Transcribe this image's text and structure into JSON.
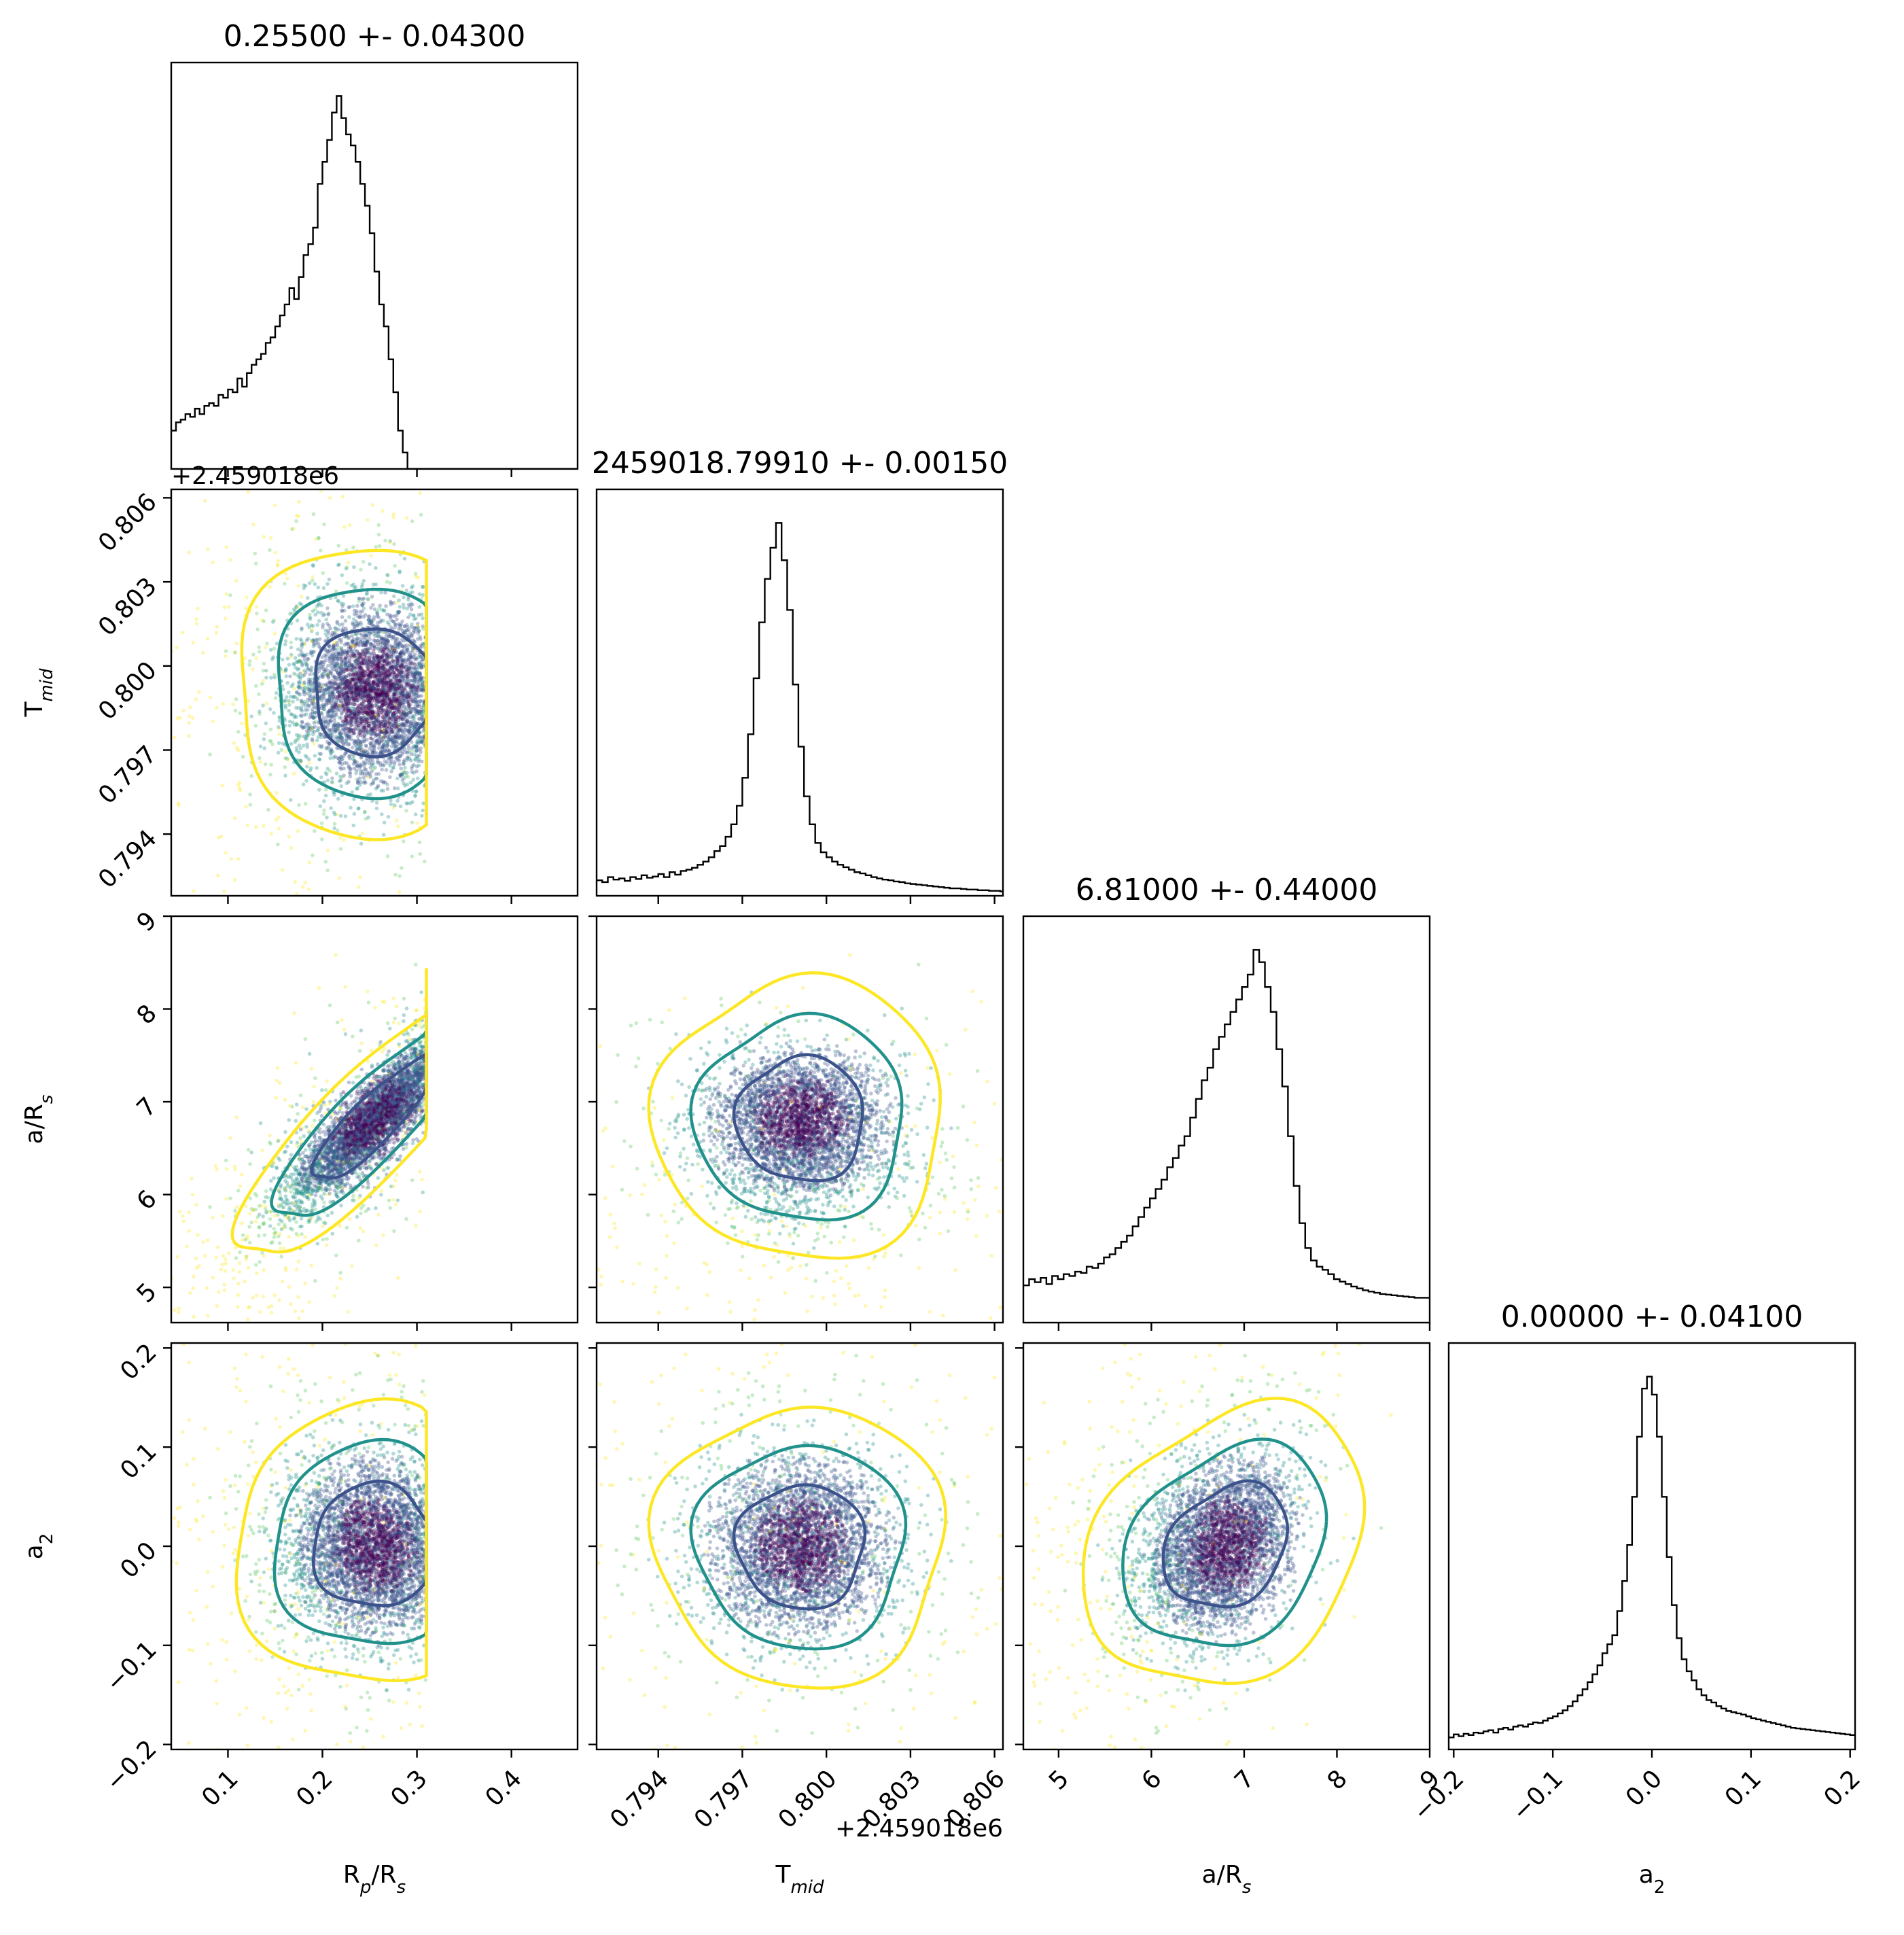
{
  "chart_data": {
    "type": "corner",
    "parameters": [
      {
        "key": "rprs",
        "label_main": "R",
        "label_sub": "p",
        "label_tail": "/R",
        "label_tail_sub": "s",
        "range": [
          0.04,
          0.47
        ],
        "ticks": [
          0.1,
          0.2,
          0.3,
          0.4
        ],
        "tick_labels": [
          "0.1",
          "0.2",
          "0.3",
          "0.4"
        ],
        "offset": ""
      },
      {
        "key": "tmid",
        "label_main": "T",
        "label_sub": "mid",
        "label_tail": "",
        "label_tail_sub": "",
        "range": [
          0.7918,
          0.8063
        ],
        "ticks": [
          0.794,
          0.797,
          0.8,
          0.803,
          0.806
        ],
        "tick_labels": [
          "0.794",
          "0.797",
          "0.800",
          "0.803",
          "0.806"
        ],
        "offset": "+2.459018e6"
      },
      {
        "key": "ars",
        "label_main": "a/R",
        "label_sub": "s",
        "label_tail": "",
        "label_tail_sub": "",
        "range": [
          4.62,
          9.0
        ],
        "ticks": [
          5,
          6,
          7,
          8,
          9
        ],
        "tick_labels": [
          "5",
          "6",
          "7",
          "8",
          "9"
        ],
        "offset": ""
      },
      {
        "key": "a2",
        "label_main": "a",
        "label_sub": "2",
        "label_tail": "",
        "label_tail_sub": "",
        "range": [
          -0.205,
          0.205
        ],
        "ticks": [
          -0.2,
          -0.1,
          0.0,
          0.1,
          0.2
        ],
        "tick_labels": [
          "−0.2",
          "−0.1",
          "0.0",
          "0.1",
          "0.2"
        ],
        "offset": ""
      }
    ],
    "titles": [
      "0.25500 +- 0.04300",
      "2459018.79910 +- 0.00150",
      "6.81000 +- 0.44000",
      "0.00000 +- 0.04100"
    ],
    "posterior_summary": [
      {
        "median": 0.255,
        "sigma": 0.043
      },
      {
        "median": 2459018.7991,
        "sigma": 0.0015
      },
      {
        "median": 6.81,
        "sigma": 0.44
      },
      {
        "median": 0.0,
        "sigma": 0.041
      }
    ],
    "histograms": [
      {
        "bin_start": 0.04,
        "bin_width": 0.005,
        "counts": [
          70,
          85,
          90,
          100,
          95,
          110,
          100,
          115,
          120,
          115,
          135,
          130,
          145,
          140,
          165,
          150,
          175,
          190,
          200,
          210,
          230,
          240,
          260,
          280,
          300,
          330,
          310,
          350,
          390,
          410,
          440,
          520,
          560,
          600,
          650,
          680,
          640,
          610,
          590,
          560,
          520,
          480,
          430,
          360,
          300,
          260,
          200,
          140,
          70,
          30,
          0,
          0,
          0,
          0,
          0,
          0,
          0,
          0,
          0,
          0,
          0,
          0,
          0,
          0,
          0,
          0,
          0,
          0,
          0,
          0,
          0,
          0,
          0,
          0,
          0,
          0,
          0,
          0,
          0,
          0,
          0,
          0,
          0,
          0,
          0,
          0
        ]
      },
      {
        "bin_start": 0.7918,
        "bin_width": 0.0002,
        "counts": [
          25,
          22,
          30,
          26,
          28,
          24,
          30,
          27,
          33,
          29,
          31,
          35,
          30,
          38,
          34,
          40,
          42,
          45,
          50,
          55,
          62,
          72,
          80,
          95,
          115,
          145,
          190,
          260,
          350,
          440,
          510,
          560,
          600,
          540,
          460,
          340,
          240,
          160,
          115,
          85,
          70,
          62,
          55,
          50,
          46,
          42,
          38,
          36,
          33,
          30,
          28,
          26,
          25,
          23,
          22,
          20,
          19,
          18,
          17,
          16,
          15,
          14,
          13,
          12,
          12,
          11,
          10,
          10,
          9,
          9,
          8,
          8,
          7
        ]
      },
      {
        "bin_start": 4.62,
        "bin_width": 0.062,
        "counts": [
          60,
          70,
          65,
          72,
          62,
          75,
          70,
          78,
          75,
          82,
          80,
          90,
          88,
          95,
          105,
          110,
          120,
          130,
          140,
          155,
          170,
          185,
          200,
          215,
          230,
          250,
          265,
          285,
          300,
          330,
          360,
          390,
          410,
          440,
          460,
          480,
          500,
          520,
          540,
          560,
          600,
          580,
          540,
          500,
          440,
          380,
          300,
          220,
          160,
          120,
          100,
          90,
          85,
          78,
          70,
          66,
          62,
          58,
          55,
          52,
          50,
          48,
          46,
          45,
          44,
          43,
          42,
          41,
          40,
          40,
          40
        ]
      },
      {
        "bin_start": -0.205,
        "bin_width": 0.005,
        "counts": [
          20,
          25,
          22,
          26,
          24,
          28,
          27,
          30,
          32,
          28,
          34,
          36,
          33,
          38,
          40,
          38,
          42,
          45,
          44,
          48,
          52,
          55,
          60,
          65,
          72,
          80,
          90,
          100,
          112,
          125,
          140,
          160,
          175,
          190,
          230,
          280,
          340,
          420,
          520,
          600,
          620,
          590,
          520,
          420,
          320,
          240,
          185,
          150,
          130,
          115,
          100,
          90,
          82,
          78,
          72,
          68,
          64,
          62,
          60,
          58,
          55,
          52,
          50,
          48,
          46,
          44,
          42,
          40,
          38,
          36,
          35,
          34,
          33,
          32,
          31,
          30,
          29,
          28,
          27,
          26,
          25,
          24
        ]
      }
    ],
    "covariance": [
      [
        0.00185,
        0.0,
        0.0165,
        0.0
      ],
      [
        0.0,
        2.25e-06,
        0.0,
        0.0
      ],
      [
        0.0165,
        0.0,
        0.194,
        0.0045
      ],
      [
        0.0,
        0.0,
        0.0045,
        0.00168
      ]
    ],
    "truncation": {
      "rprs_max": 0.31
    },
    "contour_levels": [
      {
        "sigma": 1,
        "color": "#3b528b"
      },
      {
        "sigma": 2,
        "color": "#21918c"
      },
      {
        "sigma": 3,
        "color": "#fde725"
      }
    ],
    "point_colormap": [
      "#440154",
      "#3b528b",
      "#21918c",
      "#5ec962",
      "#fde725"
    ]
  }
}
